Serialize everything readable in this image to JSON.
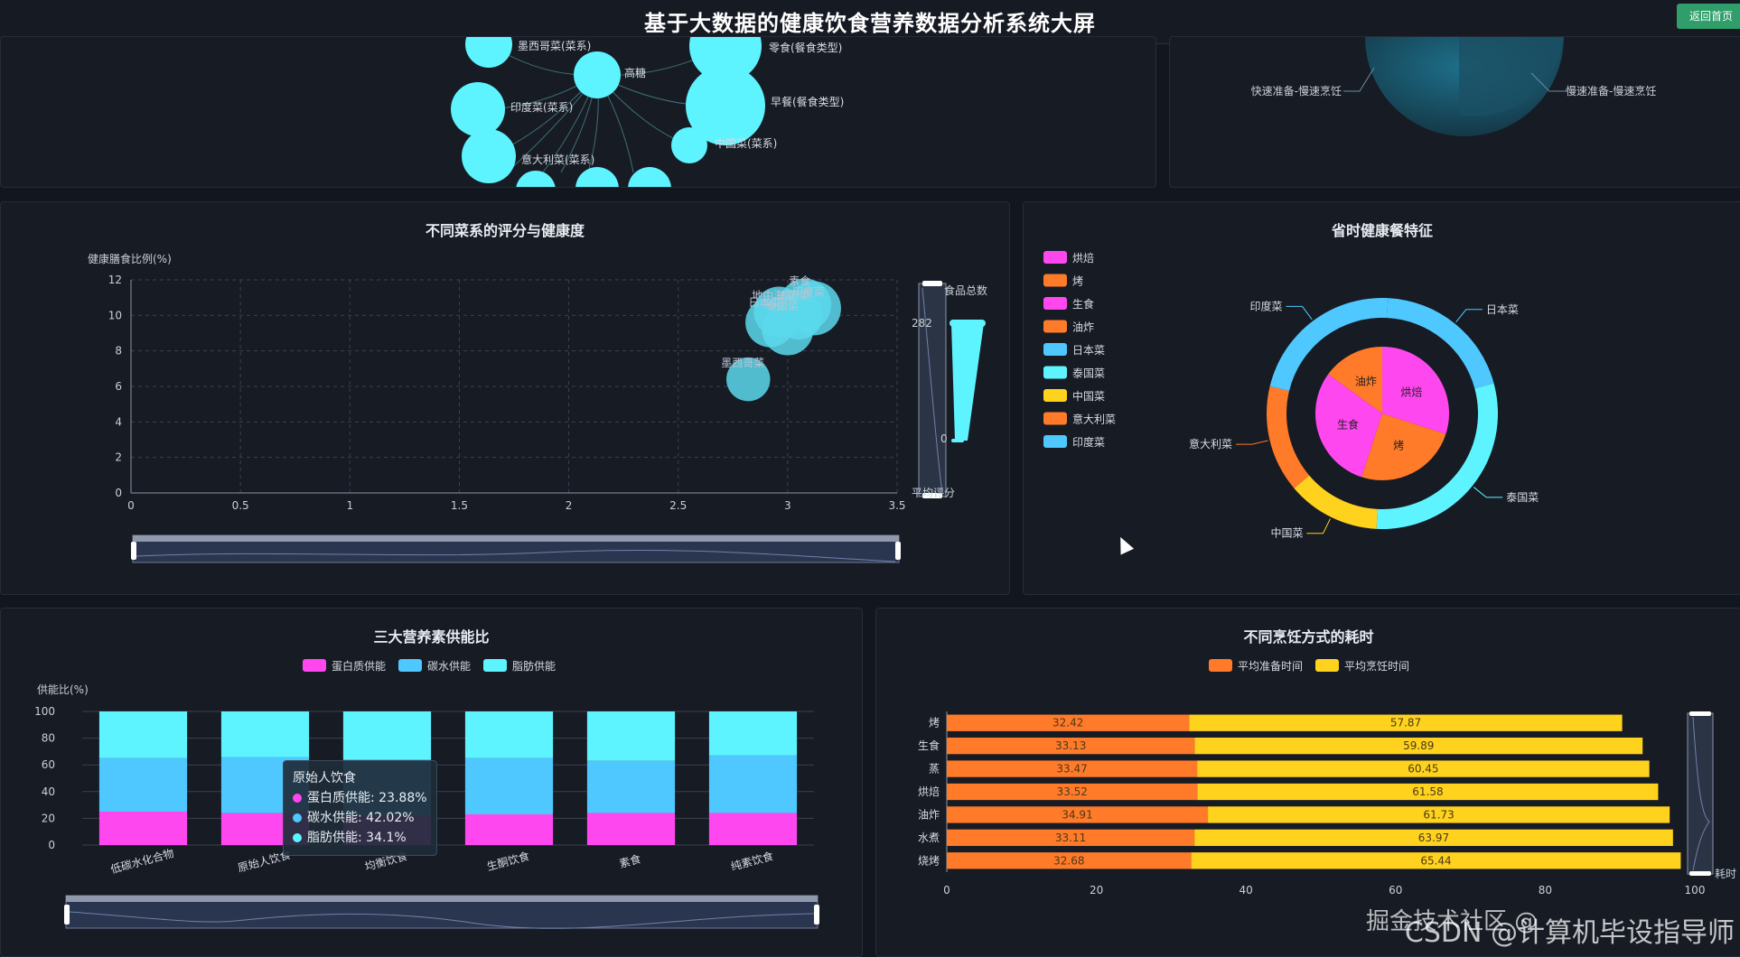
{
  "header": {
    "title": "基于大数据的健康饮食营养数据分析系统大屏",
    "home_button": "返回首页"
  },
  "network": {
    "nodes": [
      {
        "label": "墨西哥菜(菜系)",
        "size": 26
      },
      {
        "label": "高糖",
        "size": 26
      },
      {
        "label": "零食(餐食类型)",
        "size": 40
      },
      {
        "label": "印度菜(菜系)",
        "size": 30
      },
      {
        "label": "早餐(餐食类型)",
        "size": 44
      },
      {
        "label": "中国菜(菜系)",
        "size": 20
      },
      {
        "label": "意大利菜(菜系)",
        "size": 30
      }
    ]
  },
  "top_right_pie": {
    "labels": [
      "快速准备-慢速烹饪",
      "慢速准备-慢速烹饪"
    ]
  },
  "scatter_chart": {
    "title": "不同菜系的评分与健康度",
    "ylabel": "健康膳食比例(%)",
    "visual_map": {
      "label_top": "食品总数",
      "label_bottom": "平均评分",
      "max": "282",
      "min": "0"
    }
  },
  "savetime_chart": {
    "title": "省时健康餐特征"
  },
  "nutrition_chart": {
    "title": "三大营养素供能比",
    "ylabel": "供能比(%)",
    "tooltip": {
      "title": "原始人饮食",
      "rows": [
        {
          "text": "蛋白质供能: 23.88%",
          "color": "#ff47f0"
        },
        {
          "text": "碳水供能: 42.02%",
          "color": "#4fc8ff"
        },
        {
          "text": "脂肪供能: 34.1%",
          "color": "#5ef4ff"
        }
      ]
    }
  },
  "cooking_chart": {
    "title": "不同烹饪方式的耗时",
    "right_label": "耗时"
  },
  "watermark": "CSDN @计算机毕设指导师",
  "watermark2": "掘金技术社区 @",
  "chart_data": [
    {
      "type": "scatter",
      "title": "不同菜系的评分与健康度",
      "ylabel": "健康膳食比例(%)",
      "xlim": [
        0,
        3.5
      ],
      "ylim": [
        0,
        12
      ],
      "x_ticks": [
        "0",
        "0.5",
        "1",
        "1.5",
        "2",
        "2.5",
        "3",
        "3.5"
      ],
      "y_ticks": [
        "0",
        "2",
        "4",
        "6",
        "8",
        "10",
        "12"
      ],
      "points": [
        {
          "name": "墨西哥菜",
          "x": 2.82,
          "y": 6.4,
          "count": 120
        },
        {
          "name": "日本菜",
          "x": 2.92,
          "y": 9.6,
          "count": 180
        },
        {
          "name": "泰国菜",
          "x": 3.0,
          "y": 9.2,
          "count": 200
        },
        {
          "name": "地中海菜",
          "x": 2.96,
          "y": 10.2,
          "count": 190
        },
        {
          "name": "法国菜",
          "x": 3.05,
          "y": 10.0,
          "count": 170
        },
        {
          "name": "素食",
          "x": 3.08,
          "y": 10.6,
          "count": 210
        },
        {
          "name": "印度菜",
          "x": 3.12,
          "y": 10.4,
          "count": 230
        }
      ],
      "point_labels": [
        "墨西哥菜",
        "日本菜",
        "泰国菜",
        "地中海菜",
        "法国菜",
        "素食",
        "印度菜"
      ]
    },
    {
      "type": "pie",
      "title": "省时健康餐特征",
      "legend": [
        {
          "name": "烘焙",
          "color": "#ff47f0"
        },
        {
          "name": "烤",
          "color": "#ff7a29"
        },
        {
          "name": "生食",
          "color": "#ff47f0"
        },
        {
          "name": "油炸",
          "color": "#ff7a29"
        },
        {
          "name": "日本菜",
          "color": "#4fc8ff"
        },
        {
          "name": "泰国菜",
          "color": "#5ef4ff"
        },
        {
          "name": "中国菜",
          "color": "#ffd21e"
        },
        {
          "name": "意大利菜",
          "color": "#ff7a29"
        },
        {
          "name": "印度菜",
          "color": "#4fc8ff"
        }
      ],
      "inner": [
        {
          "name": "烘焙",
          "value": 30,
          "color": "#ff47f0"
        },
        {
          "name": "烤",
          "value": 25,
          "color": "#ff7a29"
        },
        {
          "name": "生食",
          "value": 30,
          "color": "#ff47f0"
        },
        {
          "name": "油炸",
          "value": 15,
          "color": "#ff7a29"
        }
      ],
      "outer": [
        {
          "name": "日本菜",
          "value": 20,
          "color": "#4fc8ff"
        },
        {
          "name": "泰国菜",
          "value": 30,
          "color": "#5ef4ff"
        },
        {
          "name": "中国菜",
          "value": 13,
          "color": "#ffd21e"
        },
        {
          "name": "意大利菜",
          "value": 15,
          "color": "#ff7a29"
        },
        {
          "name": "印度菜",
          "value": 22,
          "color": "#4fc8ff"
        }
      ]
    },
    {
      "type": "bar",
      "stacked": true,
      "title": "三大营养素供能比",
      "ylabel": "供能比(%)",
      "ylim": [
        0,
        100
      ],
      "y_ticks": [
        "0",
        "20",
        "40",
        "60",
        "80",
        "100"
      ],
      "categories": [
        "低碳水化合物",
        "原始人饮食",
        "均衡饮食",
        "生酮饮食",
        "素食",
        "纯素饮食"
      ],
      "series": [
        {
          "name": "蛋白质供能",
          "color": "#ff47f0",
          "values": [
            25,
            23.88,
            22,
            23,
            24,
            24
          ]
        },
        {
          "name": "碳水供能",
          "color": "#4fc8ff",
          "values": [
            40,
            42.02,
            42,
            42,
            39,
            43
          ]
        },
        {
          "name": "脂肪供能",
          "color": "#5ef4ff",
          "values": [
            35,
            34.1,
            36,
            35,
            37,
            33
          ]
        }
      ]
    },
    {
      "type": "bar",
      "orientation": "horizontal",
      "stacked": true,
      "title": "不同烹饪方式的耗时",
      "xlim": [
        0,
        100
      ],
      "x_ticks": [
        "0",
        "20",
        "40",
        "60",
        "80",
        "100"
      ],
      "categories": [
        "烤",
        "生食",
        "蒸",
        "烘焙",
        "油炸",
        "水煮",
        "烧烤"
      ],
      "series": [
        {
          "name": "平均准备时间",
          "color": "#ff7a29",
          "values": [
            32.42,
            33.13,
            33.47,
            33.52,
            34.91,
            33.11,
            32.68
          ],
          "labels": [
            "32.42",
            "33.13",
            "33.47",
            "33.52",
            "34.91",
            "33.11",
            "32.68"
          ]
        },
        {
          "name": "平均烹饪时间",
          "color": "#ffd21e",
          "values": [
            57.87,
            59.89,
            60.45,
            61.58,
            61.73,
            63.97,
            65.44
          ],
          "labels": [
            "57.87",
            "59.89",
            "60.45",
            "61.58",
            "61.73",
            "63.97",
            "65.44"
          ]
        }
      ]
    }
  ]
}
